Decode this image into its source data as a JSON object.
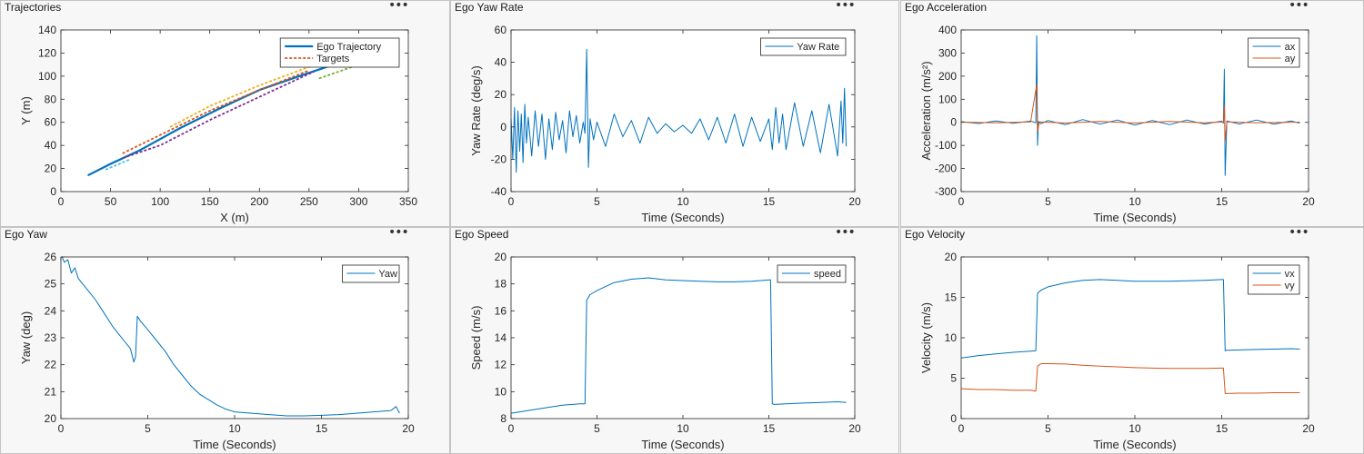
{
  "menu_label": "•••",
  "chart_data": [
    {
      "id": "trajectories",
      "panel_title": "Trajectories",
      "type": "line",
      "title": "",
      "xlabel": "X (m)",
      "ylabel": "Y (m)",
      "xlim": [
        0,
        350
      ],
      "ylim": [
        0,
        140
      ],
      "xticks": [
        0,
        50,
        100,
        150,
        200,
        250,
        300,
        350
      ],
      "yticks": [
        0,
        20,
        40,
        60,
        80,
        100,
        120,
        140
      ],
      "legend_position": "top-right",
      "legend": [
        "Ego Trajectory",
        "Targets"
      ],
      "series": [
        {
          "name": "Ego Trajectory",
          "color": "#0072bd",
          "width": 2.2,
          "dash": "",
          "x": [
            27,
            50,
            80,
            120,
            160,
            200,
            240,
            275
          ],
          "y": [
            14,
            24,
            36,
            55,
            72,
            88,
            100,
            110
          ]
        },
        {
          "name": "Targets",
          "color": "#d95319",
          "width": 1.8,
          "dash": "3,2",
          "x": [
            62,
            100,
            150,
            200,
            250
          ],
          "y": [
            33,
            49,
            70,
            88,
            105
          ]
        },
        {
          "color": "#edb120",
          "width": 1.8,
          "dash": "3,2",
          "x": [
            110,
            150,
            200,
            250,
            280
          ],
          "y": [
            56,
            74,
            92,
            108,
            116
          ]
        },
        {
          "color": "#7e2f8e",
          "width": 1.8,
          "dash": "3,2",
          "x": [
            62,
            100,
            150,
            200,
            255
          ],
          "y": [
            29,
            40,
            62,
            82,
            104
          ]
        },
        {
          "color": "#77ac30",
          "width": 1.8,
          "dash": "3,2",
          "x": [
            260,
            280,
            300
          ],
          "y": [
            98,
            104,
            110
          ]
        },
        {
          "color": "#4dbeee",
          "width": 1.8,
          "dash": "3,2",
          "x": [
            45,
            70
          ],
          "y": [
            19,
            28
          ]
        }
      ]
    },
    {
      "id": "yawrate",
      "panel_title": "Ego Yaw Rate",
      "type": "line",
      "title": "",
      "xlabel": "Time (Seconds)",
      "ylabel": "Yaw Rate (deg/s)",
      "xlim": [
        0,
        20
      ],
      "ylim": [
        -40,
        60
      ],
      "xticks": [
        0,
        5,
        10,
        15,
        20
      ],
      "yticks": [
        -40,
        -20,
        0,
        20,
        40,
        60
      ],
      "legend_position": "top-right",
      "legend": [
        "Yaw Rate"
      ],
      "series": [
        {
          "name": "Yaw Rate",
          "color": "#0072bd",
          "width": 1,
          "x": [
            0,
            0.1,
            0.2,
            0.3,
            0.4,
            0.5,
            0.6,
            0.7,
            0.8,
            0.9,
            1.0,
            1.2,
            1.4,
            1.6,
            1.8,
            2.0,
            2.2,
            2.4,
            2.6,
            2.8,
            3.0,
            3.2,
            3.4,
            3.6,
            3.8,
            4.0,
            4.2,
            4.3,
            4.4,
            4.5,
            4.6,
            4.8,
            5.0,
            5.5,
            6.0,
            6.5,
            7.0,
            7.5,
            8.0,
            8.5,
            9.0,
            9.5,
            10.0,
            10.5,
            11.0,
            11.5,
            12.0,
            12.5,
            13.0,
            13.5,
            14.0,
            14.5,
            15.0,
            15.2,
            15.4,
            15.6,
            15.8,
            16.0,
            16.5,
            17.0,
            17.5,
            18.0,
            18.5,
            19.0,
            19.2,
            19.3,
            19.4,
            19.5
          ],
          "y": [
            5,
            -20,
            12,
            -28,
            10,
            -15,
            8,
            -22,
            14,
            -10,
            6,
            -18,
            10,
            -12,
            8,
            -20,
            5,
            -14,
            9,
            -8,
            4,
            -16,
            10,
            -6,
            7,
            -10,
            3,
            -4,
            48,
            -25,
            5,
            -8,
            3,
            -12,
            8,
            -6,
            4,
            -10,
            6,
            -4,
            2,
            -3,
            1,
            -4,
            5,
            -8,
            6,
            -10,
            8,
            -12,
            6,
            -9,
            5,
            -14,
            12,
            -10,
            8,
            -14,
            15,
            -12,
            10,
            -16,
            14,
            -18,
            16,
            -10,
            24,
            -12
          ]
        }
      ]
    },
    {
      "id": "accel",
      "panel_title": "Ego Acceleration",
      "type": "line",
      "title": "",
      "xlabel": "Time (Seconds)",
      "ylabel": "Acceleration (m/s²)",
      "xlim": [
        0,
        20
      ],
      "ylim": [
        -300,
        400
      ],
      "xticks": [
        0,
        5,
        10,
        15,
        20
      ],
      "yticks": [
        -300,
        -200,
        -100,
        0,
        100,
        200,
        300,
        400
      ],
      "legend_position": "top-right",
      "legend": [
        "ax",
        "ay"
      ],
      "series": [
        {
          "name": "ax",
          "color": "#0072bd",
          "width": 1,
          "x": [
            0,
            1,
            2,
            3,
            4,
            4.3,
            4.35,
            4.4,
            4.45,
            4.6,
            5,
            6,
            7,
            8,
            9,
            10,
            11,
            12,
            13,
            14,
            15,
            15.1,
            15.15,
            15.2,
            15.3,
            16,
            17,
            18,
            19,
            19.5
          ],
          "y": [
            3,
            -5,
            6,
            -4,
            5,
            -2,
            375,
            -100,
            4,
            -6,
            8,
            -10,
            12,
            -8,
            10,
            -12,
            8,
            -10,
            10,
            -8,
            5,
            -3,
            230,
            -230,
            6,
            -8,
            10,
            -8,
            6,
            -4
          ]
        },
        {
          "name": "ay",
          "color": "#d95319",
          "width": 1,
          "x": [
            0,
            2,
            4,
            4.35,
            4.4,
            4.5,
            6,
            8,
            10,
            12,
            14,
            15.1,
            15.15,
            15.2,
            15.3,
            17,
            19.5
          ],
          "y": [
            1,
            -2,
            2,
            165,
            -40,
            2,
            -3,
            4,
            -3,
            4,
            -2,
            2,
            75,
            -80,
            2,
            -2,
            1
          ]
        }
      ]
    },
    {
      "id": "yaw",
      "panel_title": "Ego Yaw",
      "type": "line",
      "title": "",
      "xlabel": "Time (Seconds)",
      "ylabel": "Yaw (deg)",
      "xlim": [
        0,
        20
      ],
      "ylim": [
        20,
        26
      ],
      "xticks": [
        0,
        5,
        10,
        15,
        20
      ],
      "yticks": [
        20,
        21,
        22,
        23,
        24,
        25,
        26
      ],
      "legend_position": "top-right",
      "legend": [
        "Yaw"
      ],
      "series": [
        {
          "name": "Yaw",
          "color": "#0072bd",
          "width": 1,
          "x": [
            0,
            0.2,
            0.4,
            0.6,
            0.8,
            1.0,
            1.5,
            2.0,
            2.5,
            3.0,
            3.5,
            4.0,
            4.2,
            4.3,
            4.4,
            4.6,
            5.0,
            5.5,
            6.0,
            6.5,
            7.0,
            7.5,
            8.0,
            8.5,
            9.0,
            9.5,
            10.0,
            11.0,
            12.0,
            13.0,
            14.0,
            15.0,
            16.0,
            17.0,
            18.0,
            19.0,
            19.3,
            19.5
          ],
          "y": [
            26.1,
            25.8,
            25.9,
            25.4,
            25.6,
            25.2,
            24.8,
            24.4,
            23.9,
            23.4,
            23.0,
            22.6,
            22.1,
            22.3,
            23.8,
            23.6,
            23.3,
            22.9,
            22.5,
            22.0,
            21.6,
            21.2,
            20.9,
            20.7,
            20.5,
            20.35,
            20.25,
            20.2,
            20.15,
            20.1,
            20.1,
            20.12,
            20.15,
            20.2,
            20.25,
            20.3,
            20.45,
            20.2
          ]
        }
      ]
    },
    {
      "id": "speed",
      "panel_title": "Ego Speed",
      "type": "line",
      "title": "",
      "xlabel": "Time (Seconds)",
      "ylabel": "Speed (m/s)",
      "xlim": [
        0,
        20
      ],
      "ylim": [
        8,
        20
      ],
      "xticks": [
        0,
        5,
        10,
        15,
        20
      ],
      "yticks": [
        8,
        10,
        12,
        14,
        16,
        18,
        20
      ],
      "legend_position": "top-right",
      "legend": [
        "speed"
      ],
      "series": [
        {
          "name": "speed",
          "color": "#0072bd",
          "width": 1,
          "x": [
            0,
            0.5,
            1,
            2,
            3,
            4,
            4.3,
            4.4,
            4.6,
            5.0,
            5.5,
            6,
            7,
            8,
            9,
            10,
            11,
            12,
            13,
            14,
            15,
            15.1,
            15.2,
            15.3,
            16,
            17,
            18,
            19,
            19.5
          ],
          "y": [
            8.4,
            8.5,
            8.6,
            8.8,
            9.0,
            9.1,
            9.1,
            16.8,
            17.2,
            17.5,
            17.8,
            18.1,
            18.35,
            18.45,
            18.3,
            18.25,
            18.2,
            18.15,
            18.15,
            18.2,
            18.3,
            18.3,
            9.1,
            9.05,
            9.1,
            9.15,
            9.2,
            9.25,
            9.2
          ]
        }
      ]
    },
    {
      "id": "velocity",
      "panel_title": "Ego Velocity",
      "type": "line",
      "title": "",
      "xlabel": "Time (Seconds)",
      "ylabel": "Velocity (m/s)",
      "xlim": [
        0,
        20
      ],
      "ylim": [
        0,
        20
      ],
      "xticks": [
        0,
        5,
        10,
        15,
        20
      ],
      "yticks": [
        0,
        5,
        10,
        15,
        20
      ],
      "legend_position": "top-right",
      "legend": [
        "vx",
        "vy"
      ],
      "series": [
        {
          "name": "vx",
          "color": "#0072bd",
          "width": 1,
          "x": [
            0,
            1,
            2,
            3,
            4,
            4.3,
            4.4,
            4.6,
            5,
            6,
            7,
            8,
            9,
            10,
            11,
            12,
            13,
            14,
            15,
            15.1,
            15.2,
            15.3,
            16,
            17,
            18,
            19,
            19.5
          ],
          "y": [
            7.5,
            7.8,
            8.0,
            8.2,
            8.35,
            8.4,
            15.5,
            15.9,
            16.3,
            16.8,
            17.1,
            17.2,
            17.1,
            17.0,
            17.0,
            17.0,
            17.05,
            17.1,
            17.2,
            17.2,
            8.4,
            8.45,
            8.5,
            8.55,
            8.6,
            8.65,
            8.6
          ]
        },
        {
          "name": "vy",
          "color": "#d95319",
          "width": 1,
          "x": [
            0,
            1,
            2,
            3,
            4,
            4.3,
            4.4,
            4.6,
            5,
            6,
            7,
            8,
            9,
            10,
            11,
            12,
            13,
            14,
            15,
            15.1,
            15.2,
            15.3,
            16,
            17,
            18,
            19,
            19.5
          ],
          "y": [
            3.7,
            3.6,
            3.6,
            3.5,
            3.5,
            3.4,
            6.5,
            6.8,
            6.8,
            6.75,
            6.6,
            6.5,
            6.4,
            6.3,
            6.25,
            6.2,
            6.2,
            6.2,
            6.25,
            6.25,
            3.1,
            3.1,
            3.15,
            3.15,
            3.2,
            3.2,
            3.2
          ]
        }
      ]
    }
  ]
}
